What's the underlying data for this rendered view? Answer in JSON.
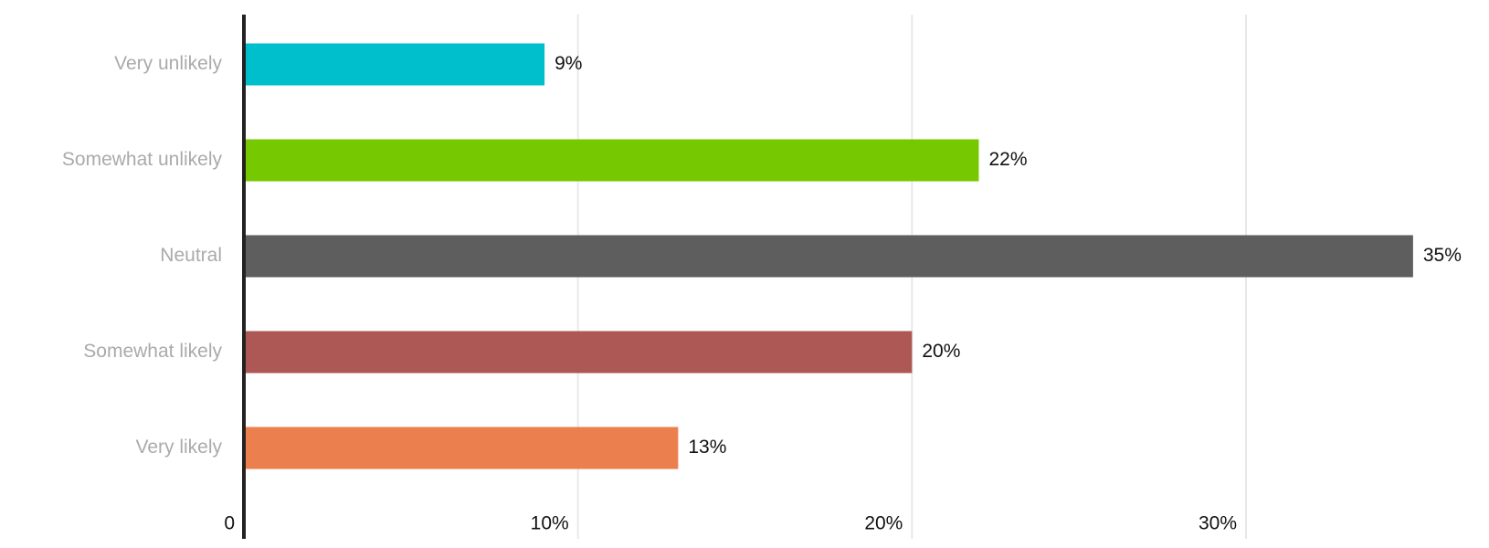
{
  "chart_data": {
    "type": "hbar",
    "categories": [
      "Very unlikely",
      "Somewhat unlikely",
      "Neutral",
      "Somewhat likely",
      "Very likely"
    ],
    "values": [
      9,
      22,
      35,
      20,
      13
    ],
    "value_labels": [
      "9%",
      "22%",
      "35%",
      "20%",
      "13%"
    ],
    "colors": [
      "#00bfcc",
      "#76c800",
      "#5f5e5e",
      "#ae5856",
      "#ec7f4e"
    ],
    "xlim": [
      0,
      37
    ],
    "xticks": [
      0,
      {
        "value": 10,
        "label": "10%"
      },
      {
        "value": 20,
        "label": "20%"
      },
      {
        "value": 30,
        "label": "30%"
      }
    ],
    "grid": true
  }
}
